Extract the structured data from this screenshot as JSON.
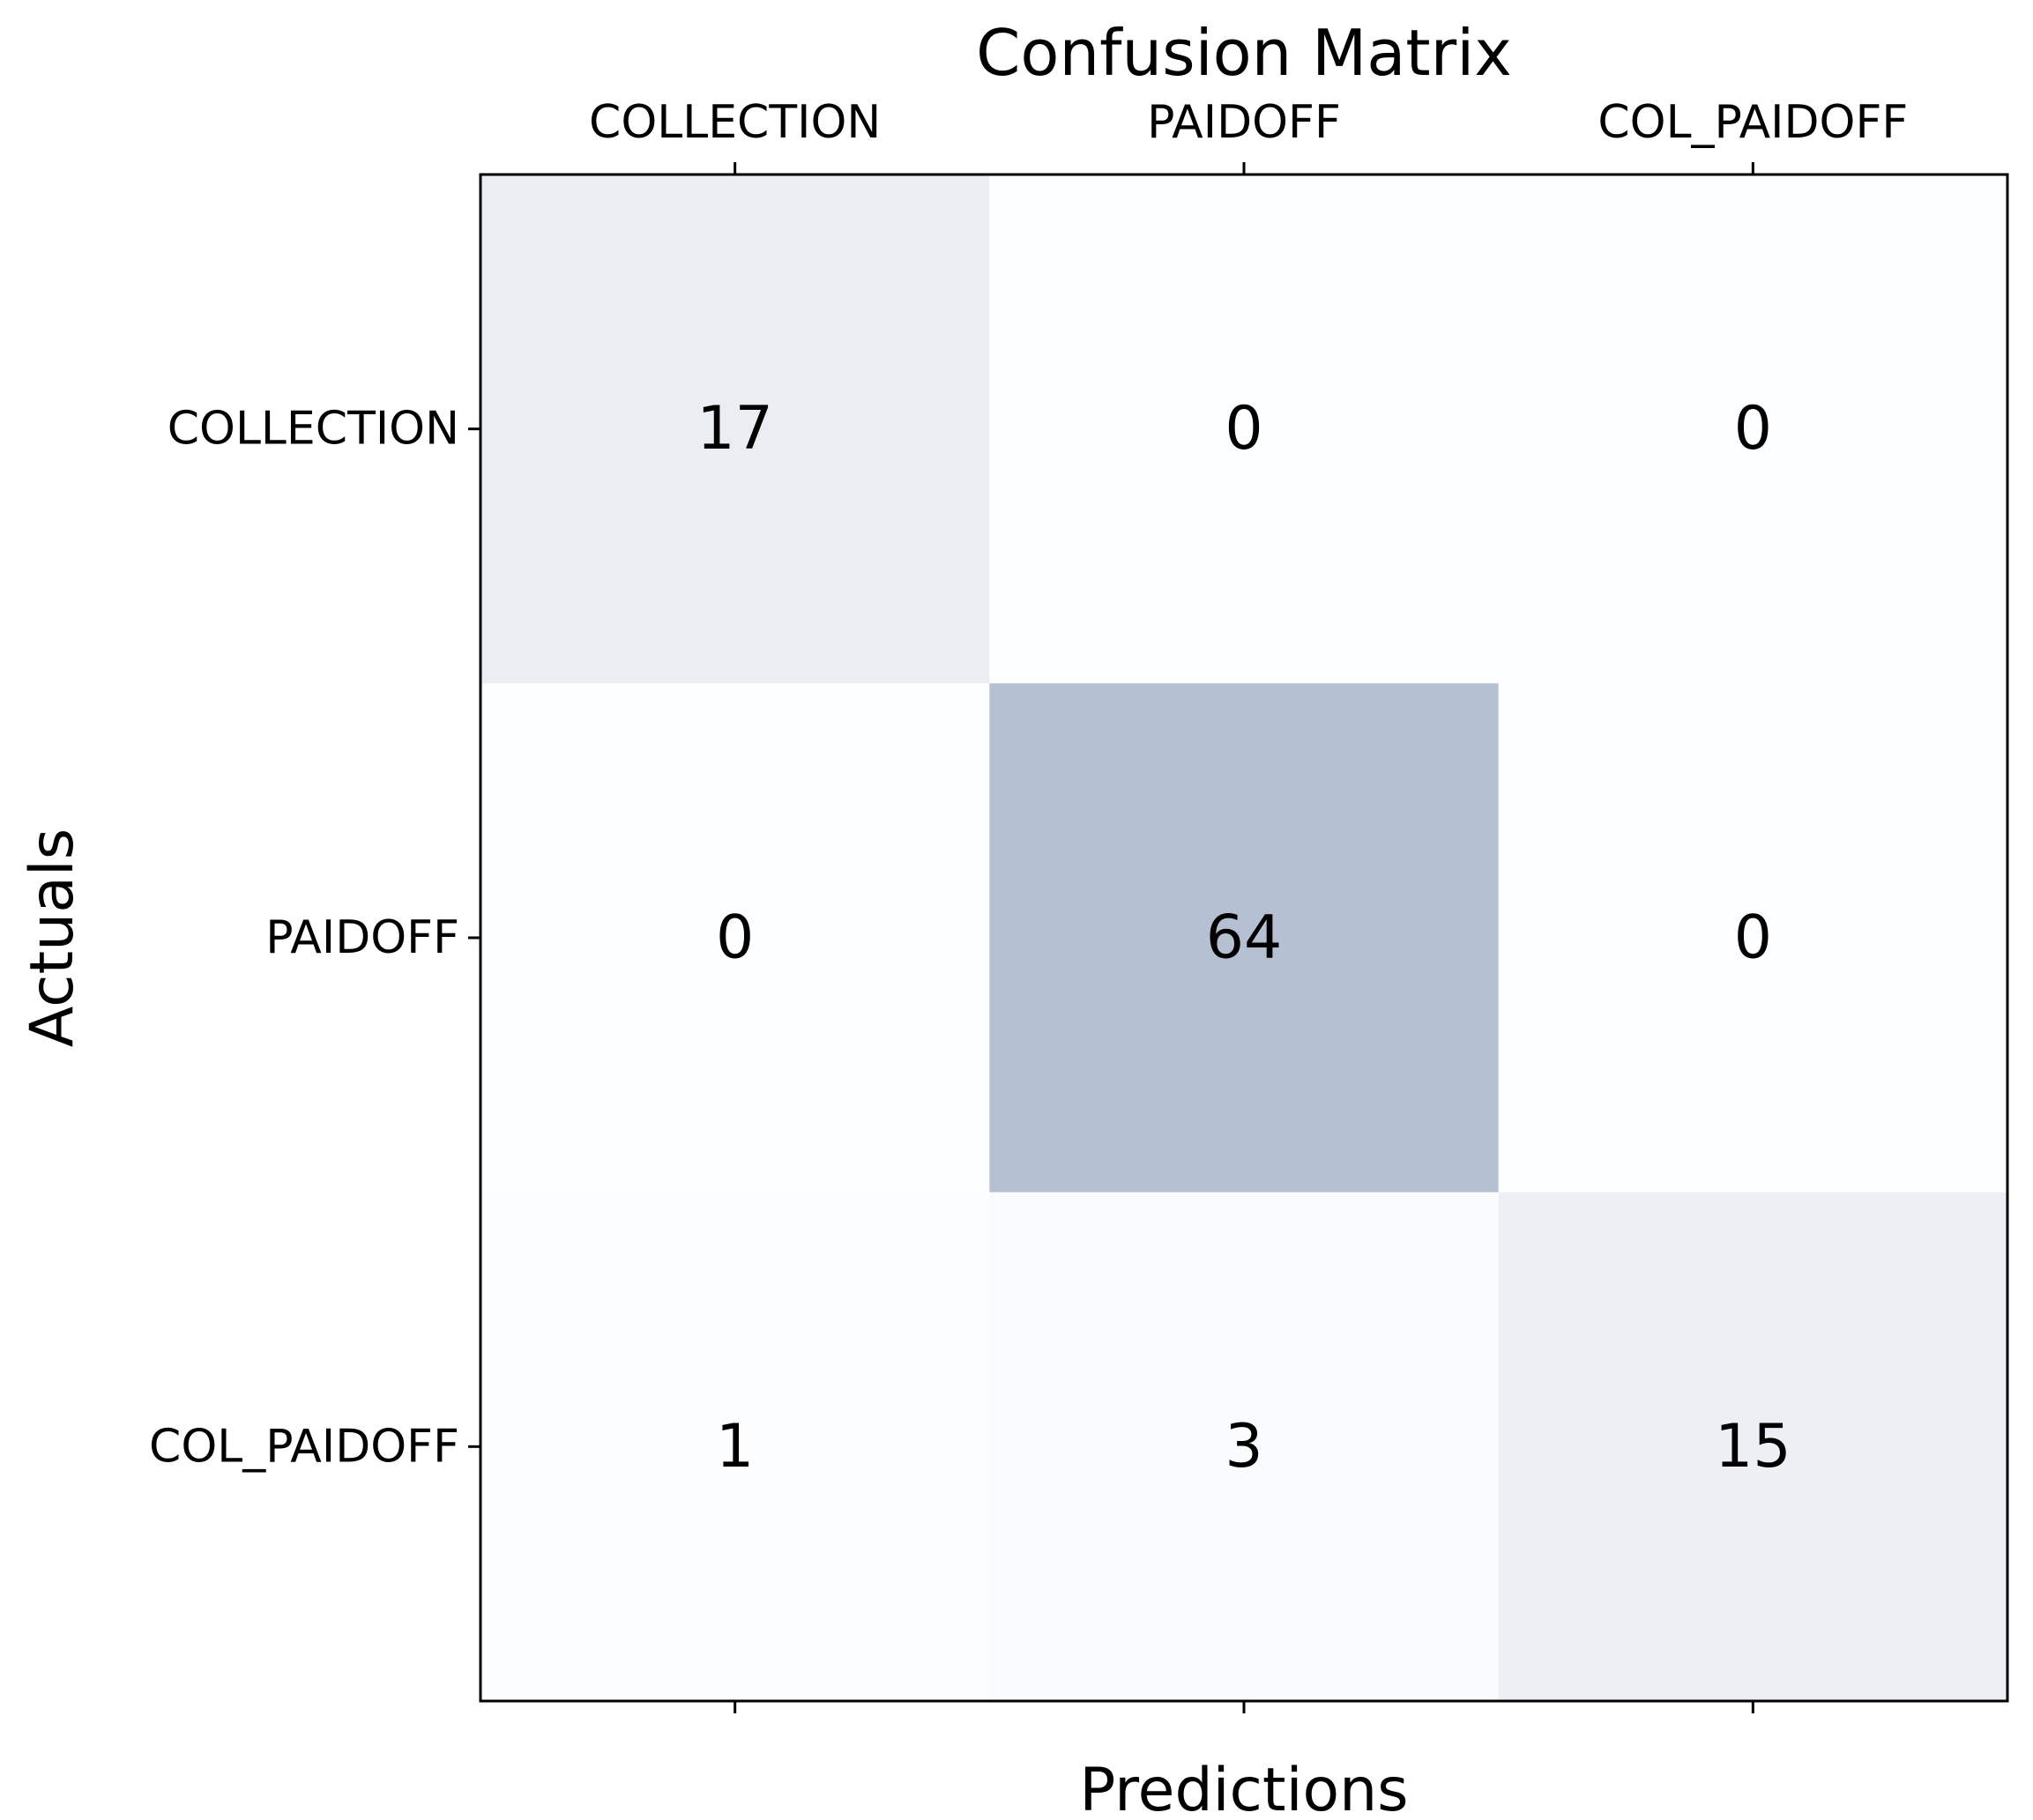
{
  "chart_data": {
    "type": "heatmap",
    "title": "Confusion Matrix",
    "xlabel": "Predictions",
    "ylabel": "Actuals",
    "x_categories": [
      "COLLECTION",
      "PAIDOFF",
      "COL_PAIDOFF"
    ],
    "y_categories": [
      "COLLECTION",
      "PAIDOFF",
      "COL_PAIDOFF"
    ],
    "values": [
      [
        17,
        0,
        0
      ],
      [
        0,
        64,
        0
      ],
      [
        1,
        3,
        15
      ]
    ],
    "x_tick_position": "top",
    "grid": false,
    "colors": {
      "low": "#f7fbff",
      "high": "#08306b",
      "alpha": 0.3
    }
  }
}
